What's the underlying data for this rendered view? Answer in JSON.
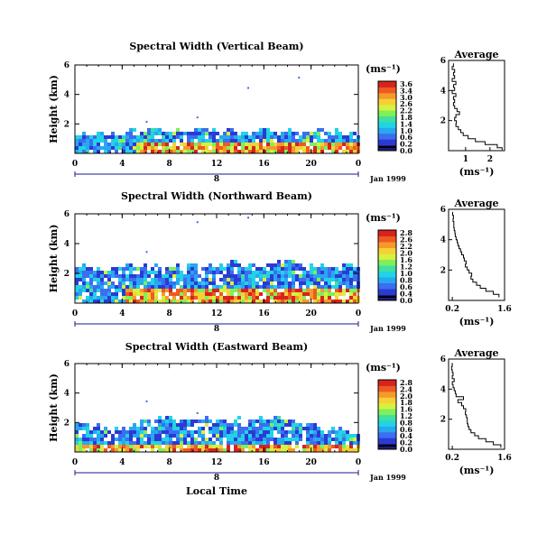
{
  "chart_data": [
    {
      "type": "heatmap",
      "title": "Spectral Width (Vertical Beam)",
      "ylabel": "Height (km)",
      "xlabel": "",
      "x_range": [
        0,
        24
      ],
      "x_ticks": [
        "0",
        "4",
        "8",
        "12",
        "16",
        "20",
        "0"
      ],
      "x_tick_values": [
        0,
        4,
        8,
        12,
        16,
        20,
        24
      ],
      "ylim": [
        0,
        6
      ],
      "y_ticks": [
        "2",
        "4",
        "6"
      ],
      "y_tick_values": [
        2,
        4,
        6
      ],
      "date_marker": "8",
      "date_label": "Jan 1999",
      "colorbar": {
        "unit": "(ms⁻¹)",
        "ticks": [
          "3.6",
          "3.4",
          "3.0",
          "2.6",
          "2.2",
          "1.8",
          "1.4",
          "1.0",
          "0.6",
          "0.2",
          "0.0"
        ]
      },
      "echo_top_km": [
        1.5,
        1.5,
        1.6,
        1.6,
        1.5,
        1.6,
        1.7,
        1.7,
        1.6,
        1.7,
        1.7,
        1.8,
        1.6,
        1.7,
        1.6,
        1.7,
        1.7,
        1.6,
        1.7,
        1.6,
        1.7,
        1.6,
        1.6,
        1.5,
        1.6
      ],
      "high_width_region": {
        "start_hour": 5,
        "end_hour": 24,
        "max_height_km": 0.8
      },
      "scattered_echo_km": [
        2.2,
        2.5,
        4.5,
        5.2
      ],
      "average_profile": {
        "title": "Average",
        "xlabel": "(ms⁻¹)",
        "xlim": [
          0.3,
          2.6
        ],
        "x_ticks": [
          "1",
          "2"
        ],
        "x_tick_values": [
          1,
          2
        ],
        "ylim": [
          0,
          6
        ],
        "y_ticks": [
          "2",
          "4",
          "6"
        ],
        "y_tick_values": [
          2,
          4,
          6
        ],
        "profile": [
          [
            2.5,
            0.05
          ],
          [
            2.3,
            0.2
          ],
          [
            1.8,
            0.4
          ],
          [
            1.4,
            0.6
          ],
          [
            1.1,
            0.8
          ],
          [
            0.9,
            1.0
          ],
          [
            0.8,
            1.2
          ],
          [
            0.7,
            1.4
          ],
          [
            0.6,
            1.6
          ],
          [
            0.62,
            1.8
          ],
          [
            0.55,
            2.0
          ],
          [
            0.6,
            2.2
          ],
          [
            0.75,
            2.4
          ],
          [
            0.65,
            2.6
          ],
          [
            0.55,
            2.8
          ],
          [
            0.5,
            3.0
          ],
          [
            0.55,
            3.2
          ],
          [
            0.5,
            3.4
          ],
          [
            0.6,
            3.6
          ],
          [
            0.45,
            3.8
          ],
          [
            0.55,
            4.0
          ],
          [
            0.5,
            4.2
          ],
          [
            0.6,
            4.4
          ],
          [
            0.45,
            4.6
          ],
          [
            0.55,
            4.8
          ],
          [
            0.5,
            5.0
          ],
          [
            0.55,
            5.2
          ],
          [
            0.45,
            5.4
          ],
          [
            0.5,
            5.6
          ],
          [
            0.5,
            5.8
          ]
        ]
      }
    },
    {
      "type": "heatmap",
      "title": "Spectral Width (Northward Beam)",
      "ylabel": "Height (km)",
      "xlabel": "",
      "x_range": [
        0,
        24
      ],
      "x_ticks": [
        "0",
        "4",
        "8",
        "12",
        "16",
        "20",
        "0"
      ],
      "x_tick_values": [
        0,
        4,
        8,
        12,
        16,
        20,
        24
      ],
      "ylim": [
        0,
        6
      ],
      "y_ticks": [
        "2",
        "4",
        "6"
      ],
      "y_tick_values": [
        2,
        4,
        6
      ],
      "date_marker": "8",
      "date_label": "Jan 1999",
      "colorbar": {
        "unit": "(ms⁻¹)",
        "ticks": [
          "2.8",
          "2.6",
          "2.2",
          "2.0",
          "1.6",
          "1.2",
          "1.0",
          "0.8",
          "0.6",
          "0.4",
          "0.0"
        ]
      },
      "echo_top_km": [
        2.6,
        2.7,
        2.3,
        2.4,
        2.6,
        2.6,
        2.7,
        2.5,
        2.6,
        2.5,
        2.7,
        2.6,
        2.8,
        2.9,
        2.6,
        2.8,
        2.7,
        2.9,
        3.0,
        2.7,
        2.6,
        2.8,
        2.7,
        2.6,
        2.5
      ],
      "high_width_region": {
        "start_hour": 4,
        "end_hour": 24,
        "max_height_km": 1.2
      },
      "scattered_echo_km": [
        3.5,
        5.5,
        5.8,
        6.0
      ],
      "average_profile": {
        "title": "Average",
        "xlabel": "(ms⁻¹)",
        "xlim": [
          0.1,
          1.6
        ],
        "x_ticks": [
          "0.2",
          "1.6"
        ],
        "x_tick_values": [
          0.2,
          1.6
        ],
        "ylim": [
          0,
          6
        ],
        "y_ticks": [
          "2",
          "4",
          "6"
        ],
        "y_tick_values": [
          2,
          4,
          6
        ],
        "profile": [
          [
            1.45,
            0.2
          ],
          [
            1.3,
            0.4
          ],
          [
            1.1,
            0.6
          ],
          [
            0.95,
            0.8
          ],
          [
            0.85,
            1.0
          ],
          [
            0.75,
            1.2
          ],
          [
            0.7,
            1.4
          ],
          [
            0.72,
            1.6
          ],
          [
            0.65,
            1.8
          ],
          [
            0.6,
            2.0
          ],
          [
            0.55,
            2.2
          ],
          [
            0.57,
            2.4
          ],
          [
            0.52,
            2.6
          ],
          [
            0.5,
            2.8
          ],
          [
            0.45,
            3.0
          ],
          [
            0.42,
            3.2
          ],
          [
            0.38,
            3.4
          ],
          [
            0.35,
            3.6
          ],
          [
            0.33,
            3.8
          ],
          [
            0.3,
            4.0
          ],
          [
            0.28,
            4.2
          ],
          [
            0.27,
            4.4
          ],
          [
            0.25,
            4.6
          ],
          [
            0.24,
            4.8
          ],
          [
            0.24,
            5.0
          ],
          [
            0.22,
            5.2
          ],
          [
            0.23,
            5.4
          ],
          [
            0.21,
            5.6
          ],
          [
            0.2,
            5.8
          ]
        ]
      }
    },
    {
      "type": "heatmap",
      "title": "Spectral Width (Eastward Beam)",
      "ylabel": "Height (km)",
      "xlabel": "Local Time",
      "x_range": [
        0,
        24
      ],
      "x_ticks": [
        "0",
        "4",
        "8",
        "12",
        "16",
        "20",
        "0"
      ],
      "x_tick_values": [
        0,
        4,
        8,
        12,
        16,
        20,
        24
      ],
      "ylim": [
        0,
        6
      ],
      "y_ticks": [
        "2",
        "4",
        "6"
      ],
      "y_tick_values": [
        2,
        4,
        6
      ],
      "date_marker": "8",
      "date_label": "Jan 1999",
      "colorbar": {
        "unit": "(ms⁻¹)",
        "ticks": [
          "2.8",
          "2.4",
          "2.0",
          "1.8",
          "1.6",
          "1.2",
          "0.8",
          "0.6",
          "0.4",
          "0.2",
          "0.0"
        ]
      },
      "echo_top_km": [
        1.9,
        2.0,
        1.9,
        1.8,
        1.7,
        2.0,
        2.3,
        2.4,
        2.5,
        2.3,
        2.4,
        2.6,
        2.4,
        2.5,
        2.2,
        2.4,
        2.3,
        2.4,
        2.3,
        2.1,
        2.0,
        1.8,
        1.6,
        1.5,
        1.4
      ],
      "high_width_region": {
        "start_hour": 0,
        "end_hour": 24,
        "max_height_km": 0.5
      },
      "scattered_echo_km": [
        3.5,
        2.7
      ],
      "average_profile": {
        "title": "Average",
        "xlabel": "(ms⁻¹)",
        "xlim": [
          0.1,
          1.6
        ],
        "x_ticks": [
          "0.2",
          "1.6"
        ],
        "x_tick_values": [
          0.2,
          1.6
        ],
        "ylim": [
          0,
          6
        ],
        "y_ticks": [
          "2",
          "4",
          "6"
        ],
        "y_tick_values": [
          2,
          4,
          6
        ],
        "profile": [
          [
            1.5,
            0.1
          ],
          [
            1.3,
            0.3
          ],
          [
            1.1,
            0.5
          ],
          [
            0.9,
            0.7
          ],
          [
            0.8,
            0.9
          ],
          [
            0.7,
            1.1
          ],
          [
            0.65,
            1.3
          ],
          [
            0.62,
            1.5
          ],
          [
            0.6,
            1.7
          ],
          [
            0.6,
            1.9
          ],
          [
            0.58,
            2.1
          ],
          [
            0.55,
            2.3
          ],
          [
            0.56,
            2.5
          ],
          [
            0.5,
            2.7
          ],
          [
            0.45,
            2.9
          ],
          [
            0.35,
            3.1
          ],
          [
            0.5,
            3.3
          ],
          [
            0.3,
            3.5
          ],
          [
            0.28,
            3.7
          ],
          [
            0.25,
            3.9
          ],
          [
            0.22,
            4.1
          ],
          [
            0.2,
            4.3
          ],
          [
            0.25,
            4.5
          ],
          [
            0.2,
            4.7
          ],
          [
            0.22,
            4.9
          ],
          [
            0.2,
            5.1
          ],
          [
            0.18,
            5.3
          ],
          [
            0.2,
            5.5
          ],
          [
            0.18,
            5.7
          ]
        ]
      }
    }
  ]
}
